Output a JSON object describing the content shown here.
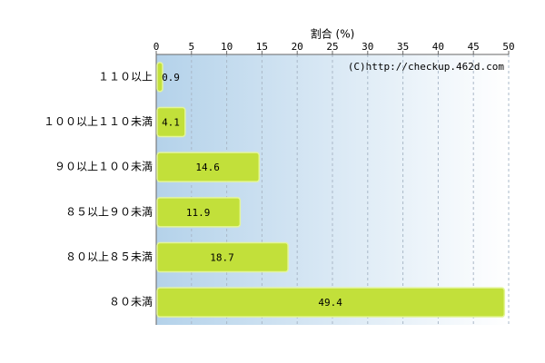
{
  "chart_data": {
    "type": "bar",
    "orientation": "horizontal",
    "x_label": "割合 (%)",
    "annotation": "(C)http://checkup.462d.com",
    "categories": [
      "１１０以上",
      "１００以上１１０未満",
      "９０以上１００未満",
      "８５以上９０未満",
      "８０以上８５未満",
      "８０未満"
    ],
    "values": [
      0.9,
      4.1,
      14.6,
      11.9,
      18.7,
      49.4
    ],
    "color": "#c2e03a",
    "xlim": [
      0,
      50
    ],
    "xticks": [
      0,
      5,
      10,
      15,
      20,
      25,
      30,
      35,
      40,
      45,
      50
    ],
    "grid": true
  }
}
